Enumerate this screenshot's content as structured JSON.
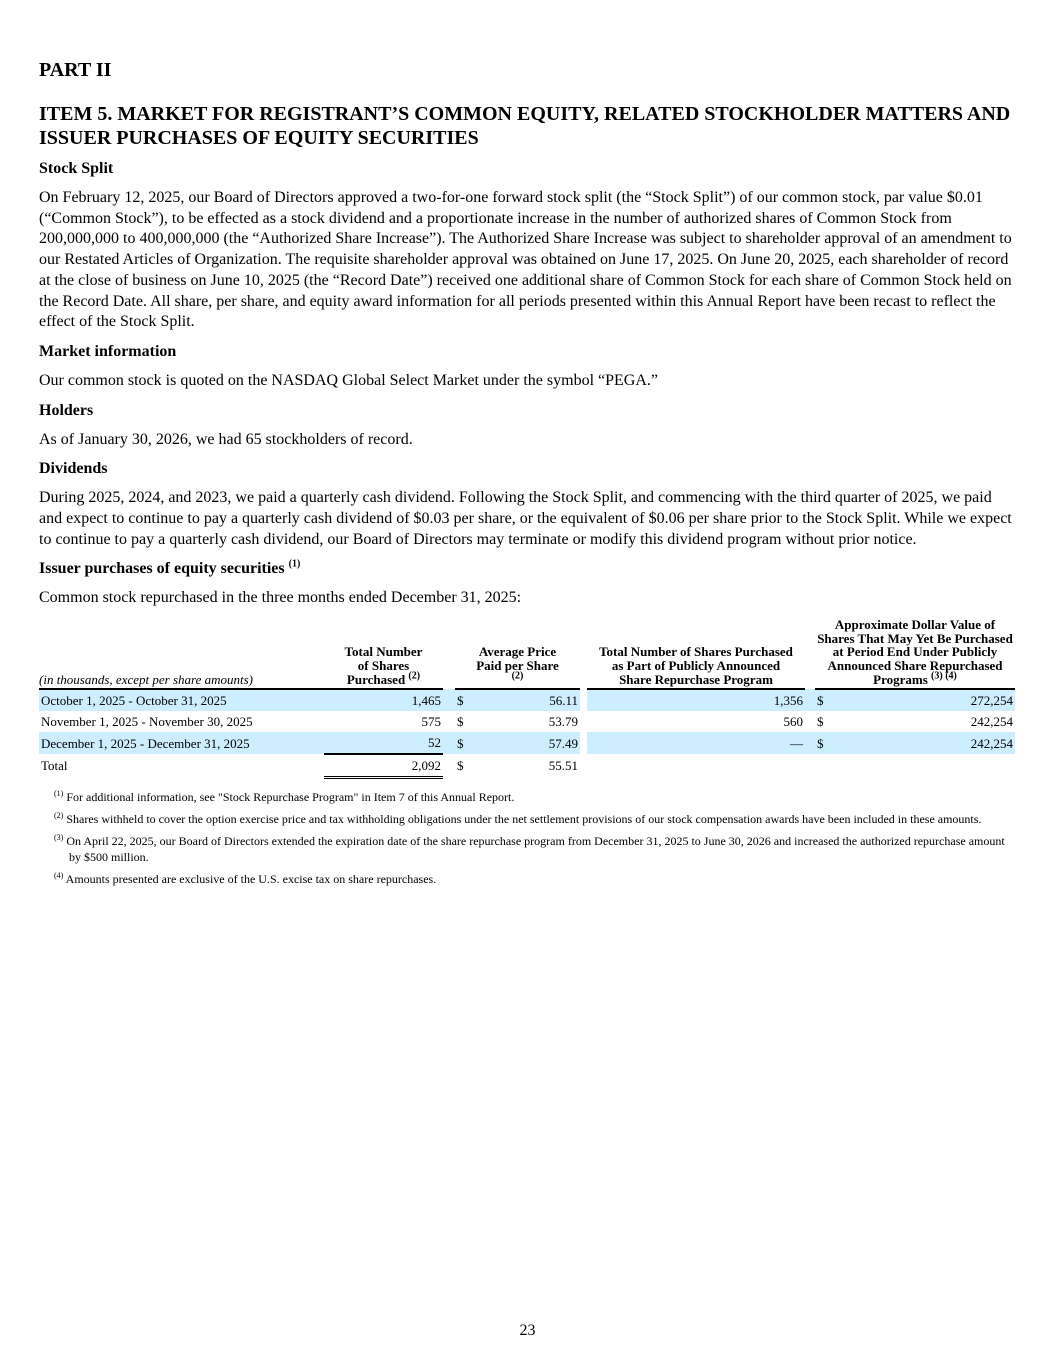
{
  "part": "PART II",
  "item_title": "ITEM 5. MARKET FOR REGISTRANT’S COMMON EQUITY, RELATED STOCKHOLDER MATTERS AND ISSUER PURCHASES OF EQUITY SECURITIES",
  "sections": {
    "stock_split": {
      "heading": "Stock Split",
      "text": "On February 12, 2025, our Board of Directors approved a two-for-one forward stock split (the “Stock Split”) of our common stock, par value $0.01 (“Common Stock”), to be effected as a stock dividend and a proportionate increase in the number of authorized shares of Common Stock from 200,000,000 to 400,000,000 (the “Authorized Share Increase”). The Authorized Share Increase was subject to shareholder approval of an amendment to our Restated Articles of Organization. The requisite shareholder approval was obtained on June 17, 2025. On June 20, 2025, each shareholder of record at the close of business on June 10, 2025 (the “Record Date”) received one additional share of Common Stock for each share of Common Stock held on the Record Date. All share, per share, and equity award information for all periods presented within this Annual Report have been recast to reflect the effect of the Stock Split."
    },
    "market": {
      "heading": "Market information",
      "text": "Our common stock is quoted on the NASDAQ Global Select Market under the symbol “PEGA.”"
    },
    "holders": {
      "heading": "Holders",
      "text": "As of January 30, 2026, we had 65 stockholders of record."
    },
    "dividends": {
      "heading": "Dividends",
      "text": "During 2025, 2024, and 2023, we paid a quarterly cash dividend. Following the Stock Split, and commencing with the third quarter of 2025, we paid and expect to continue to pay a quarterly cash dividend of $0.03 per share, or the equivalent of $0.06 per share prior to the Stock Split. While we expect to continue to pay a quarterly cash dividend, our Board of Directors may terminate or modify this dividend program without prior notice."
    },
    "issuer": {
      "heading": "Issuer purchases of equity securities",
      "heading_sup": "(1)",
      "text": "Common stock repurchased in the three months ended December 31, 2025:"
    }
  },
  "table": {
    "colors": {
      "row_shade": "#cceeff"
    },
    "headers": {
      "label": "(in thousands, except per share amounts)",
      "c1": "Total Number of Shares Purchased",
      "c1_sup": "(2)",
      "c2": "Average Price Paid per Share",
      "c2_sup": "(2)",
      "c3": "Total Number of Shares Purchased as Part of Publicly Announced Share Repurchase Program",
      "c4": "Approximate Dollar Value of Shares That May Yet Be Purchased at Period End Under Publicly Announced Share Repurchased Programs",
      "c4_sup": "(3) (4)"
    },
    "rows": [
      {
        "period": "October 1, 2025 - October 31, 2025",
        "shares": "1,465",
        "cur": "$",
        "price": "56.11",
        "program": "1,356",
        "cur2": "$",
        "remaining": "272,254"
      },
      {
        "period": "November 1, 2025 - November 30, 2025",
        "shares": "575",
        "cur": "$",
        "price": "53.79",
        "program": "560",
        "cur2": "$",
        "remaining": "242,254"
      },
      {
        "period": "December 1, 2025 - December 31, 2025",
        "shares": "52",
        "cur": "$",
        "price": "57.49",
        "program": "—",
        "cur2": "$",
        "remaining": "242,254"
      }
    ],
    "total": {
      "label": "Total",
      "shares": "2,092",
      "cur": "$",
      "price": "55.51"
    }
  },
  "footnotes": [
    {
      "mark": "(1)",
      "text": "For additional information, see \"Stock Repurchase Program\" in Item 7 of this Annual Report."
    },
    {
      "mark": "(2)",
      "text": "Shares withheld to cover the option exercise price and tax withholding obligations under the net settlement provisions of our stock compensation awards have been included in these amounts."
    },
    {
      "mark": "(3)",
      "text": "On April 22, 2025, our Board of Directors extended the expiration date of the share repurchase program from December 31, 2025 to June 30, 2026 and increased the authorized repurchase amount by $500 million."
    },
    {
      "mark": "(4)",
      "text": "Amounts presented are exclusive of the U.S. excise tax on share repurchases."
    }
  ],
  "page_number": "23"
}
